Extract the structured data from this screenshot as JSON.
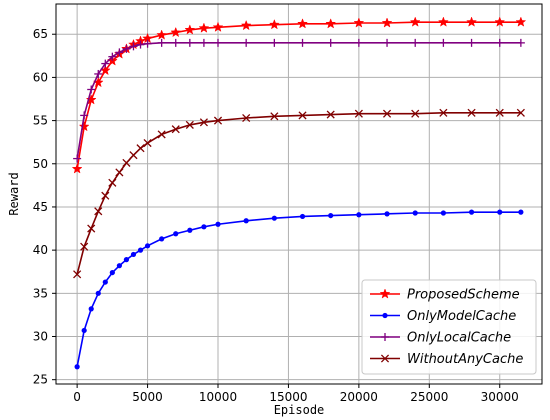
{
  "chart_data": {
    "type": "line",
    "xlabel": "Episode",
    "ylabel": "Reward",
    "xlim": [
      -1500,
      33000
    ],
    "ylim": [
      24.5,
      68.5
    ],
    "xticks": [
      0,
      5000,
      10000,
      15000,
      20000,
      25000,
      30000
    ],
    "yticks": [
      25,
      30,
      35,
      40,
      45,
      50,
      55,
      60,
      65
    ],
    "grid": true,
    "legend_position": "lower-right",
    "x": [
      0,
      500,
      1000,
      1500,
      2000,
      2500,
      3000,
      3500,
      4000,
      4500,
      5000,
      6000,
      7000,
      8000,
      9000,
      10000,
      12000,
      14000,
      16000,
      18000,
      20000,
      22000,
      24000,
      26000,
      28000,
      30000,
      31500
    ],
    "series": [
      {
        "name": "ProposedScheme",
        "color": "#ff0000",
        "marker": "star",
        "values": [
          49.4,
          54.3,
          57.4,
          59.4,
          60.8,
          61.9,
          62.7,
          63.3,
          63.8,
          64.2,
          64.5,
          64.9,
          65.2,
          65.5,
          65.7,
          65.8,
          66.0,
          66.1,
          66.2,
          66.2,
          66.3,
          66.3,
          66.4,
          66.4,
          66.4,
          66.4,
          66.4
        ]
      },
      {
        "name": "OnlyModelCache",
        "color": "#0000ff",
        "marker": "circle",
        "values": [
          26.5,
          30.7,
          33.2,
          35.0,
          36.3,
          37.4,
          38.2,
          38.9,
          39.5,
          40.0,
          40.5,
          41.3,
          41.9,
          42.3,
          42.7,
          43.0,
          43.4,
          43.7,
          43.9,
          44.0,
          44.1,
          44.2,
          44.3,
          44.3,
          44.4,
          44.4,
          44.4
        ]
      },
      {
        "name": "OnlyLocalCache",
        "color": "#800080",
        "marker": "plus",
        "values": [
          50.6,
          55.6,
          58.6,
          60.4,
          61.6,
          62.4,
          62.9,
          63.3,
          63.6,
          63.8,
          63.9,
          64.0,
          64.0,
          64.0,
          64.0,
          64.0,
          64.0,
          64.0,
          64.0,
          64.0,
          64.0,
          64.0,
          64.0,
          64.0,
          64.0,
          64.0,
          64.0
        ]
      },
      {
        "name": "WithoutAnyCache",
        "color": "#800000",
        "marker": "x",
        "values": [
          37.2,
          40.4,
          42.5,
          44.5,
          46.3,
          47.8,
          49.0,
          50.1,
          51.0,
          51.8,
          52.4,
          53.4,
          54.0,
          54.5,
          54.8,
          55.0,
          55.3,
          55.5,
          55.6,
          55.7,
          55.8,
          55.8,
          55.8,
          55.9,
          55.9,
          55.9,
          55.9
        ]
      }
    ]
  }
}
